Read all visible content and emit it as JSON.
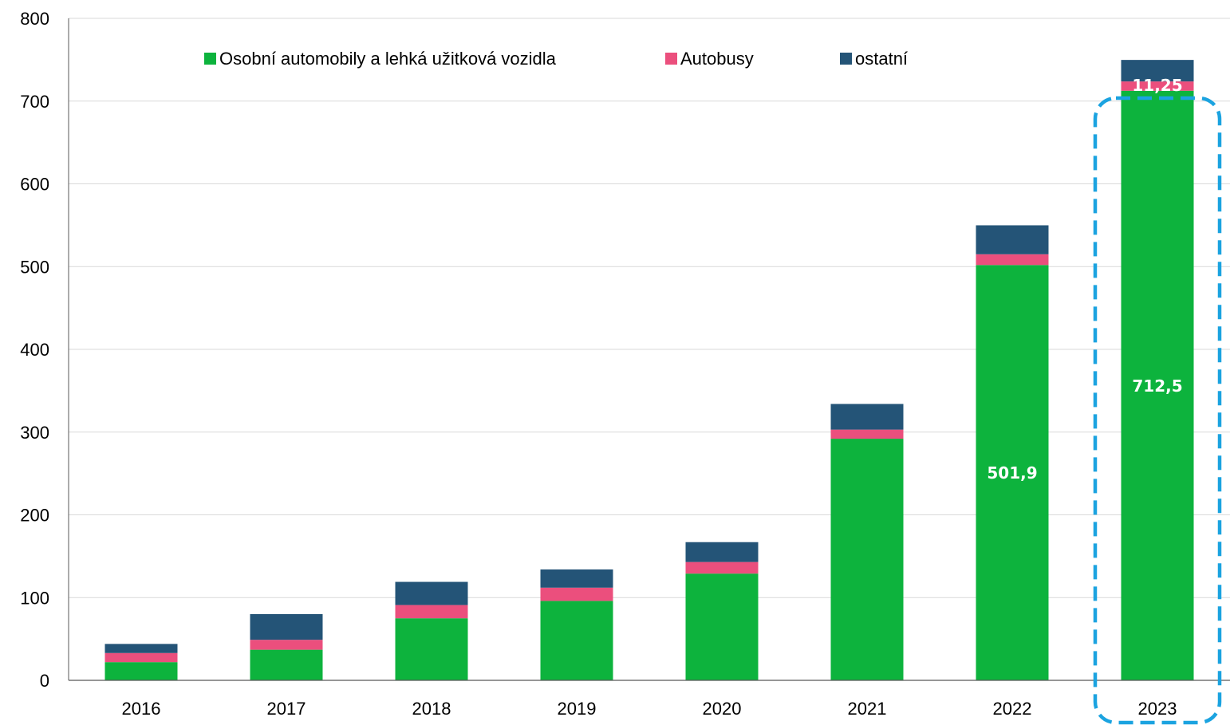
{
  "chart_data": {
    "type": "bar",
    "stacked": true,
    "categories": [
      "2016",
      "2017",
      "2018",
      "2019",
      "2020",
      "2021",
      "2022",
      "2023"
    ],
    "series": [
      {
        "name": "Osobní automobily a lehká užitková vozidla",
        "color": "#0DB33D",
        "values": [
          22,
          37,
          75,
          96,
          129,
          292,
          501.9,
          712.5
        ]
      },
      {
        "name": "Autobusy",
        "color": "#EB4F7D",
        "values": [
          11,
          12,
          16,
          16,
          14,
          11,
          13,
          11.25
        ]
      },
      {
        "name": "ostatní",
        "color": "#245477",
        "values": [
          11,
          31,
          28,
          22,
          24,
          31,
          35,
          26
        ]
      }
    ],
    "data_labels": [
      {
        "category": "2022",
        "series": "Osobní automobily a lehká užitková vozidla",
        "text": "501,9"
      },
      {
        "category": "2023",
        "series": "Osobní automobily a lehká užitková vozidla",
        "text": "712,5"
      },
      {
        "category": "2023",
        "series": "Autobusy",
        "text": "11,25"
      }
    ],
    "y_ticks": [
      "0",
      "100",
      "200",
      "300",
      "400",
      "500",
      "600",
      "700",
      "800"
    ],
    "ylim": [
      0,
      800
    ],
    "grid": true,
    "legend_position": "top",
    "highlight": {
      "category": "2023",
      "style": "dashed",
      "color": "#1BA3E0"
    },
    "title": "",
    "xlabel": "",
    "ylabel": ""
  }
}
